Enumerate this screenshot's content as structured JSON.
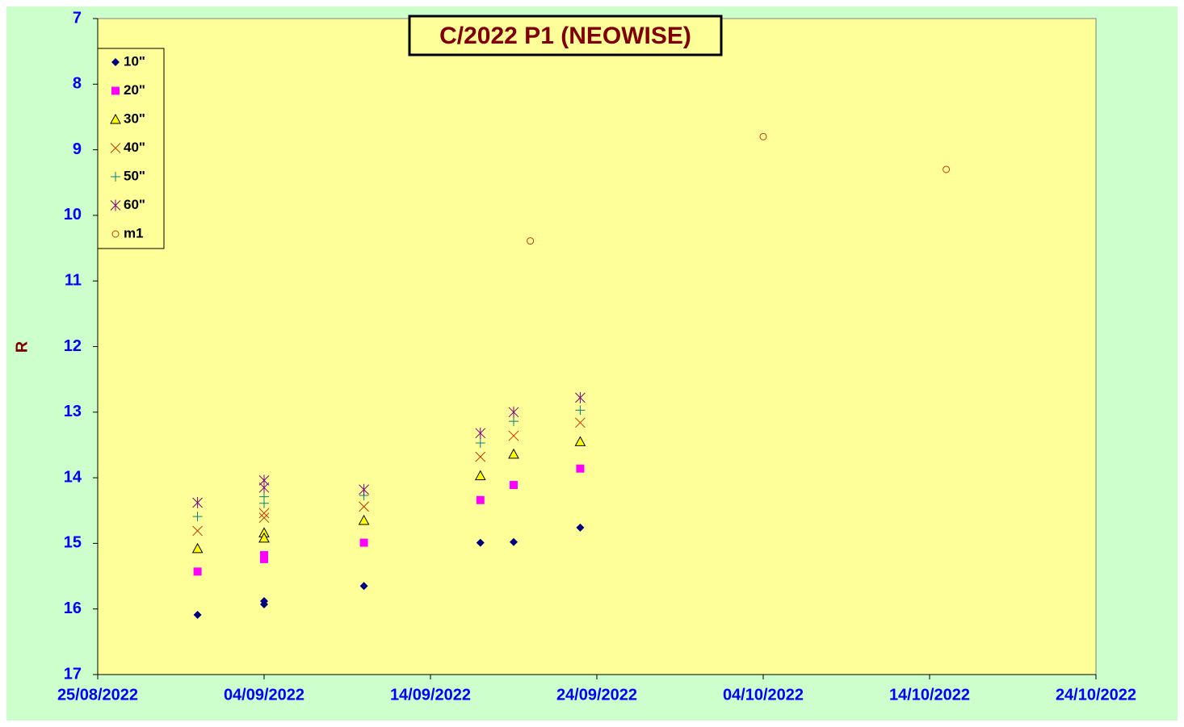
{
  "chart_data": {
    "type": "scatter",
    "title": "C/2022 P1 (NEOWISE)",
    "y_label": "R",
    "xlim": [
      "2022-08-25",
      "2022-10-24"
    ],
    "xticks": [
      {
        "value": "2022-08-25",
        "label": "25/08/2022"
      },
      {
        "value": "2022-09-04",
        "label": "04/09/2022"
      },
      {
        "value": "2022-09-14",
        "label": "14/09/2022"
      },
      {
        "value": "2022-09-24",
        "label": "24/09/2022"
      },
      {
        "value": "2022-10-04",
        "label": "04/10/2022"
      },
      {
        "value": "2022-10-14",
        "label": "14/10/2022"
      },
      {
        "value": "2022-10-24",
        "label": "24/10/2022"
      }
    ],
    "ylim": [
      7,
      17
    ],
    "y_inverted": true,
    "yticks": [
      7,
      8,
      9,
      10,
      11,
      12,
      13,
      14,
      15,
      16,
      17
    ],
    "legend": "top-left",
    "series": [
      {
        "name": "10\"",
        "marker": "diamond",
        "color": "#000080",
        "x": [
          "2022-08-31",
          "2022-09-04",
          "2022-09-04",
          "2022-09-10",
          "2022-09-17",
          "2022-09-19",
          "2022-09-23"
        ],
        "values": [
          16.09,
          15.88,
          15.93,
          15.65,
          14.99,
          14.98,
          14.76
        ]
      },
      {
        "name": "20\"",
        "marker": "square",
        "color": "#ff00ff",
        "x": [
          "2022-08-31",
          "2022-09-04",
          "2022-09-04",
          "2022-09-10",
          "2022-09-17",
          "2022-09-19",
          "2022-09-23"
        ],
        "values": [
          15.43,
          15.18,
          15.24,
          14.99,
          14.34,
          14.11,
          13.86
        ]
      },
      {
        "name": "30\"",
        "marker": "triangle",
        "color": "#ffff00",
        "x": [
          "2022-08-31",
          "2022-09-04",
          "2022-09-04",
          "2022-09-10",
          "2022-09-17",
          "2022-09-19",
          "2022-09-23"
        ],
        "values": [
          15.08,
          14.84,
          14.92,
          14.65,
          13.97,
          13.64,
          13.45
        ]
      },
      {
        "name": "40\"",
        "marker": "x",
        "color": "#cc3300",
        "x": [
          "2022-08-31",
          "2022-09-04",
          "2022-09-04",
          "2022-09-10",
          "2022-09-17",
          "2022-09-19",
          "2022-09-23"
        ],
        "values": [
          14.81,
          14.54,
          14.61,
          14.44,
          13.68,
          13.36,
          13.16
        ]
      },
      {
        "name": "50\"",
        "marker": "plus",
        "color": "#008080",
        "x": [
          "2022-08-31",
          "2022-09-04",
          "2022-09-04",
          "2022-09-10",
          "2022-09-17",
          "2022-09-19",
          "2022-09-23"
        ],
        "values": [
          14.59,
          14.29,
          14.39,
          14.27,
          13.47,
          13.14,
          12.97
        ]
      },
      {
        "name": "60\"",
        "marker": "star",
        "color": "#800080",
        "x": [
          "2022-08-31",
          "2022-09-04",
          "2022-09-04",
          "2022-09-10",
          "2022-09-17",
          "2022-09-19",
          "2022-09-23"
        ],
        "values": [
          14.38,
          14.04,
          14.15,
          14.18,
          13.32,
          13.0,
          12.78
        ]
      },
      {
        "name": "m1",
        "marker": "circle",
        "color": "#cc3300",
        "x": [
          "2022-09-20",
          "2022-10-04",
          "2022-10-15"
        ],
        "values": [
          10.39,
          8.8,
          9.3
        ]
      }
    ]
  }
}
